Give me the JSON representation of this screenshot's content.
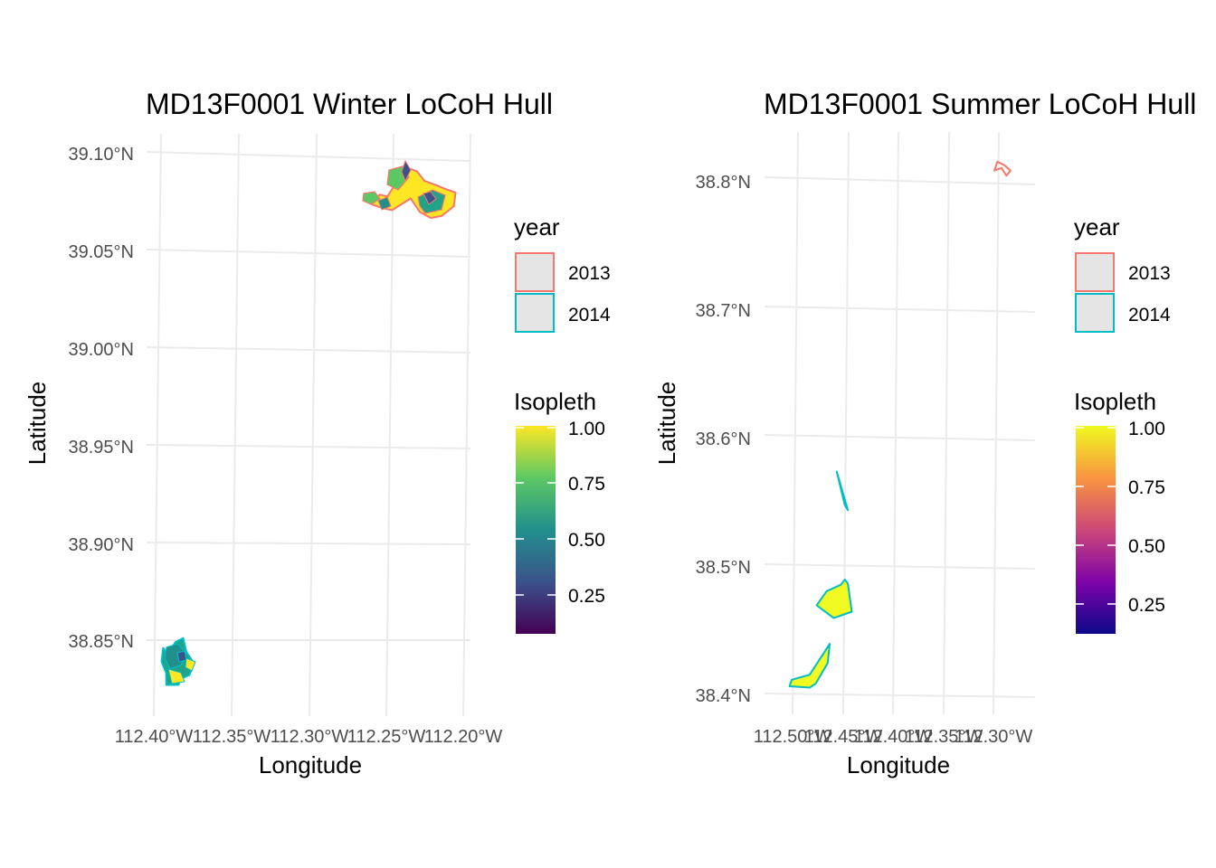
{
  "chart_data": [
    {
      "type": "map",
      "title": "MD13F0001 Winter LoCoH Hull",
      "xlabel": "Longitude",
      "ylabel": "Latitude",
      "x_ticks": [
        "112.40°W",
        "112.35°W",
        "112.30°W",
        "112.25°W",
        "112.20°W"
      ],
      "y_ticks": [
        "39.10°N",
        "39.05°N",
        "39.00°N",
        "38.95°N",
        "38.90°N",
        "38.85°N"
      ],
      "legend_year": {
        "title": "year",
        "items": [
          {
            "label": "2013",
            "color": "#F8766D"
          },
          {
            "label": "2014",
            "color": "#00BFC4"
          }
        ]
      },
      "legend_isopleth": {
        "title": "Isopleth",
        "palette": "viridis",
        "ticks": [
          "1.00",
          "0.75",
          "0.50",
          "0.25"
        ]
      },
      "polygons": [
        {
          "year": "2013",
          "stroke": "#F8766D",
          "fill": "#FDE725",
          "coords": [
            [
              -112.258,
              39.076
            ],
            [
              -112.254,
              39.079
            ],
            [
              -112.249,
              39.078
            ],
            [
              -112.245,
              39.083
            ],
            [
              -112.243,
              39.091
            ],
            [
              -112.237,
              39.093
            ],
            [
              -112.23,
              39.091
            ],
            [
              -112.225,
              39.086
            ],
            [
              -112.218,
              39.084
            ],
            [
              -112.212,
              39.082
            ],
            [
              -112.205,
              39.08
            ],
            [
              -112.206,
              39.073
            ],
            [
              -112.214,
              39.068
            ],
            [
              -112.221,
              39.067
            ],
            [
              -112.228,
              39.07
            ],
            [
              -112.234,
              39.077
            ],
            [
              -112.24,
              39.074
            ],
            [
              -112.246,
              39.071
            ],
            [
              -112.252,
              39.072
            ],
            [
              -112.259,
              39.074
            ]
          ]
        },
        {
          "year": "2014",
          "stroke": "#00BFC4",
          "fill": "#20A386",
          "coords": [
            [
              -112.391,
              38.843
            ],
            [
              -112.386,
              38.849
            ],
            [
              -112.381,
              38.851
            ],
            [
              -112.379,
              38.844
            ],
            [
              -112.374,
              38.838
            ],
            [
              -112.377,
              38.832
            ],
            [
              -112.383,
              38.83
            ],
            [
              -112.384,
              38.827
            ],
            [
              -112.392,
              38.827
            ],
            [
              -112.392,
              38.833
            ],
            [
              -112.395,
              38.839
            ],
            [
              -112.394,
              38.846
            ]
          ]
        }
      ]
    },
    {
      "type": "map",
      "title": "MD13F0001 Summer LoCoH Hull",
      "xlabel": "Longitude",
      "ylabel": "Latitude",
      "x_ticks": [
        "112.50°W",
        "112.45°W",
        "112.40°W",
        "112.35°W",
        "112.30°W"
      ],
      "y_ticks": [
        "38.8°N",
        "38.7°N",
        "38.6°N",
        "38.5°N",
        "38.4°N"
      ],
      "legend_year": {
        "title": "year",
        "items": [
          {
            "label": "2013",
            "color": "#F8766D"
          },
          {
            "label": "2014",
            "color": "#00BFC4"
          }
        ]
      },
      "legend_isopleth": {
        "title": "Isopleth",
        "palette": "plasma",
        "ticks": [
          "1.00",
          "0.75",
          "0.50",
          "0.25"
        ]
      },
      "polygons": [
        {
          "year": "2013",
          "stroke": "#F8766D",
          "fill": "none",
          "coords": [
            [
              -112.299,
              38.808
            ],
            [
              -112.296,
              38.815
            ],
            [
              -112.289,
              38.812
            ],
            [
              -112.283,
              38.808
            ],
            [
              -112.287,
              38.804
            ],
            [
              -112.292,
              38.81
            ]
          ]
        },
        {
          "year": "2014",
          "stroke": "#00BFC4",
          "fill": "none",
          "coords": [
            [
              -112.456,
              38.574
            ],
            [
              -112.445,
              38.544
            ],
            [
              -112.448,
              38.548
            ]
          ]
        },
        {
          "year": "2014",
          "stroke": "#00BFC4",
          "fill": "#F0F921",
          "coords": [
            [
              -112.476,
              38.47
            ],
            [
              -112.466,
              38.481
            ],
            [
              -112.452,
              38.486
            ],
            [
              -112.448,
              38.49
            ],
            [
              -112.445,
              38.487
            ],
            [
              -112.441,
              38.465
            ],
            [
              -112.459,
              38.46
            ]
          ]
        },
        {
          "year": "2014",
          "stroke": "#00BFC4",
          "fill": "#F0F921",
          "coords": [
            [
              -112.503,
              38.407
            ],
            [
              -112.501,
              38.412
            ],
            [
              -112.483,
              38.416
            ],
            [
              -112.463,
              38.44
            ],
            [
              -112.465,
              38.425
            ],
            [
              -112.477,
              38.409
            ],
            [
              -112.483,
              38.406
            ]
          ]
        }
      ]
    }
  ]
}
